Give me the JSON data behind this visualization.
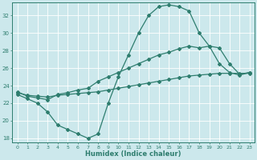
{
  "xlabel": "Humidex (Indice chaleur)",
  "bg_color": "#cce8ec",
  "grid_color": "#ffffff",
  "line_color": "#2e7d6e",
  "xlim": [
    -0.5,
    23.5
  ],
  "ylim": [
    17.5,
    33.5
  ],
  "yticks": [
    18,
    20,
    22,
    24,
    26,
    28,
    30,
    32
  ],
  "xticks": [
    0,
    1,
    2,
    3,
    4,
    5,
    6,
    7,
    8,
    9,
    10,
    11,
    12,
    13,
    14,
    15,
    16,
    17,
    18,
    19,
    20,
    21,
    22,
    23
  ],
  "line1_x": [
    0,
    1,
    2,
    3,
    4,
    5,
    6,
    7,
    8,
    9,
    10,
    11,
    12,
    13,
    14,
    15,
    16,
    17,
    18,
    19,
    20,
    21,
    22,
    23
  ],
  "line1_y": [
    23.0,
    22.5,
    22.0,
    21.0,
    19.5,
    19.0,
    18.5,
    18.0,
    18.5,
    22.0,
    25.0,
    27.5,
    30.0,
    32.0,
    33.0,
    33.2,
    33.0,
    32.5,
    30.0,
    28.5,
    26.5,
    25.5,
    25.2,
    25.5
  ],
  "line2_x": [
    0,
    1,
    2,
    3,
    4,
    5,
    6,
    7,
    8,
    9,
    10,
    11,
    12,
    13,
    14,
    15,
    16,
    17,
    18,
    19,
    20,
    21,
    22,
    23
  ],
  "line2_y": [
    23.3,
    22.8,
    22.6,
    22.4,
    23.0,
    23.2,
    23.5,
    23.7,
    24.5,
    25.0,
    25.5,
    26.0,
    26.5,
    27.0,
    27.5,
    27.8,
    28.2,
    28.5,
    28.3,
    28.5,
    28.3,
    26.5,
    25.3,
    25.5
  ],
  "line3_x": [
    0,
    1,
    2,
    3,
    4,
    5,
    6,
    7,
    8,
    9,
    10,
    11,
    12,
    13,
    14,
    15,
    16,
    17,
    18,
    19,
    20,
    21,
    22,
    23
  ],
  "line3_y": [
    23.2,
    22.9,
    22.8,
    22.7,
    22.9,
    23.0,
    23.1,
    23.2,
    23.3,
    23.5,
    23.7,
    23.9,
    24.1,
    24.3,
    24.5,
    24.7,
    24.9,
    25.1,
    25.2,
    25.3,
    25.4,
    25.4,
    25.4,
    25.4
  ]
}
